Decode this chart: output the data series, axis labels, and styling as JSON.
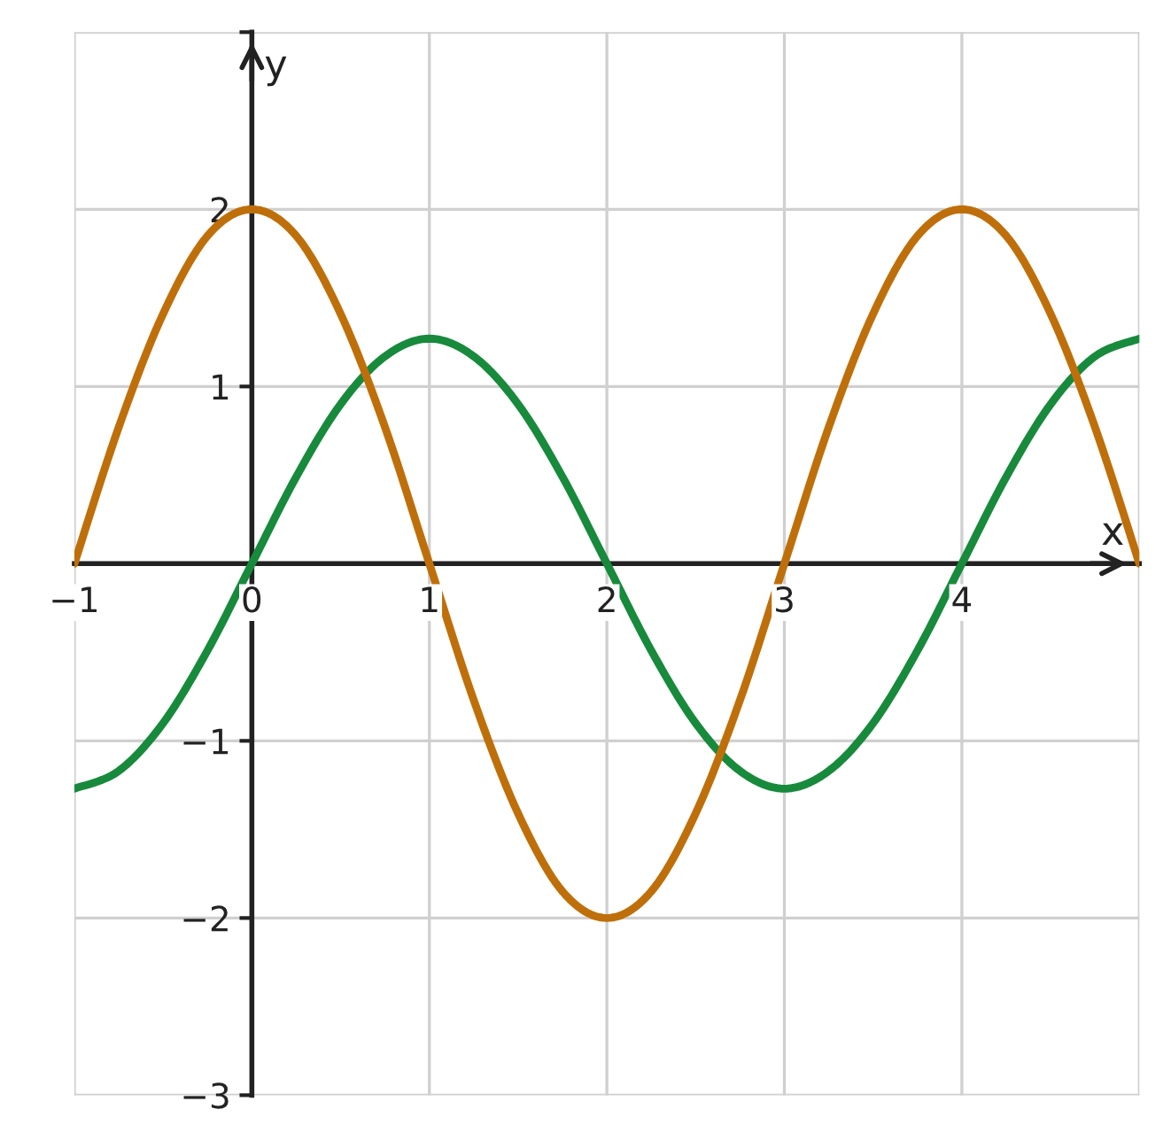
{
  "chart_data": {
    "type": "line",
    "xlabel": "x",
    "ylabel": "y",
    "x": [
      -1,
      -0.75,
      -0.5,
      -0.25,
      0,
      0.25,
      0.5,
      0.75,
      1,
      1.25,
      1.5,
      1.75,
      2,
      2.25,
      2.5,
      2.75,
      3,
      3.25,
      3.5,
      3.75,
      4,
      4.25,
      4.5,
      4.75,
      5
    ],
    "series": [
      {
        "color": "#178a3c",
        "values": [
          -1.27,
          -1.17,
          -0.9,
          -0.49,
          0,
          0.49,
          0.9,
          1.17,
          1.27,
          1.17,
          0.9,
          0.49,
          0,
          -0.49,
          -0.9,
          -1.17,
          -1.27,
          -1.17,
          -0.9,
          -0.49,
          0,
          0.49,
          0.9,
          1.17,
          1.27
        ]
      },
      {
        "color": "#bf6f0a",
        "values": [
          0,
          0.77,
          1.41,
          1.85,
          2,
          1.85,
          1.41,
          0.77,
          0,
          -0.77,
          -1.41,
          -1.85,
          -2,
          -1.85,
          -1.41,
          -0.77,
          0,
          0.77,
          1.41,
          1.85,
          2,
          1.85,
          1.41,
          0.77,
          0
        ]
      }
    ],
    "xlim": [
      -1,
      5
    ],
    "ylim": [
      -3,
      3
    ],
    "xticks": [
      -1,
      0,
      1,
      2,
      3,
      4,
      {
        "value": 5,
        "label": null
      }
    ],
    "yticks": [
      -3,
      -2,
      -1,
      {
        "value": 0,
        "label": null
      },
      1,
      2,
      {
        "value": 3,
        "label": null
      }
    ],
    "grid": true,
    "marker": "none",
    "line_style": "solid",
    "legend": false
  }
}
